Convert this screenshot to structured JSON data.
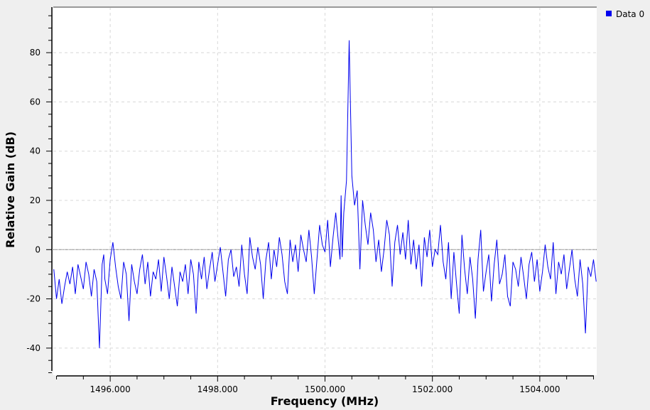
{
  "chart_data": {
    "type": "line",
    "xlabel": "Frequency (MHz)",
    "ylabel": "Relative Gain (dB)",
    "xlim": [
      1494.94,
      1505.06
    ],
    "ylim": [
      -51,
      98.5
    ],
    "x_ticks": [
      {
        "value": 1496,
        "label": "1496.000"
      },
      {
        "value": 1498,
        "label": "1498.000"
      },
      {
        "value": 1500,
        "label": "1500.000"
      },
      {
        "value": 1502,
        "label": "1502.000"
      },
      {
        "value": 1504,
        "label": "1504.000"
      }
    ],
    "y_ticks": [
      {
        "value": -40,
        "label": "-40"
      },
      {
        "value": -20,
        "label": "-20"
      },
      {
        "value": 0,
        "label": "0"
      },
      {
        "value": 20,
        "label": "20"
      },
      {
        "value": 40,
        "label": "40"
      },
      {
        "value": 60,
        "label": "60"
      },
      {
        "value": 80,
        "label": "80"
      }
    ],
    "grid": true,
    "legend_position": "right",
    "reference_line_y": 0,
    "colors": {
      "series": "#0000ee",
      "grid": "#d8d8d8",
      "reference": "#555555",
      "plot_background": "#ffffff",
      "page_background": "#efefef"
    },
    "series": [
      {
        "name": "Data 0",
        "x": [
          1494.95,
          1495.0,
          1495.05,
          1495.1,
          1495.15,
          1495.2,
          1495.25,
          1495.3,
          1495.35,
          1495.4,
          1495.45,
          1495.5,
          1495.55,
          1495.6,
          1495.65,
          1495.7,
          1495.75,
          1495.8,
          1495.85,
          1495.88,
          1495.9,
          1495.95,
          1496.0,
          1496.05,
          1496.1,
          1496.15,
          1496.2,
          1496.25,
          1496.3,
          1496.35,
          1496.4,
          1496.45,
          1496.5,
          1496.55,
          1496.6,
          1496.65,
          1496.7,
          1496.75,
          1496.8,
          1496.85,
          1496.9,
          1496.95,
          1497.0,
          1497.05,
          1497.1,
          1497.15,
          1497.2,
          1497.25,
          1497.3,
          1497.35,
          1497.4,
          1497.45,
          1497.5,
          1497.55,
          1497.6,
          1497.65,
          1497.7,
          1497.75,
          1497.8,
          1497.85,
          1497.9,
          1497.95,
          1498.0,
          1498.05,
          1498.1,
          1498.15,
          1498.2,
          1498.25,
          1498.3,
          1498.35,
          1498.4,
          1498.45,
          1498.5,
          1498.55,
          1498.6,
          1498.65,
          1498.7,
          1498.75,
          1498.8,
          1498.85,
          1498.9,
          1498.95,
          1499.0,
          1499.05,
          1499.1,
          1499.15,
          1499.2,
          1499.25,
          1499.3,
          1499.35,
          1499.4,
          1499.45,
          1499.5,
          1499.55,
          1499.6,
          1499.65,
          1499.7,
          1499.75,
          1499.8,
          1499.85,
          1499.9,
          1499.95,
          1500.0,
          1500.05,
          1500.1,
          1500.15,
          1500.2,
          1500.25,
          1500.28,
          1500.3,
          1500.32,
          1500.35,
          1500.4,
          1500.45,
          1500.5,
          1500.55,
          1500.6,
          1500.65,
          1500.7,
          1500.75,
          1500.8,
          1500.85,
          1500.9,
          1500.95,
          1501.0,
          1501.05,
          1501.1,
          1501.15,
          1501.2,
          1501.25,
          1501.3,
          1501.35,
          1501.4,
          1501.45,
          1501.5,
          1501.55,
          1501.6,
          1501.65,
          1501.7,
          1501.75,
          1501.8,
          1501.85,
          1501.9,
          1501.95,
          1502.0,
          1502.05,
          1502.1,
          1502.15,
          1502.2,
          1502.25,
          1502.3,
          1502.35,
          1502.4,
          1502.45,
          1502.5,
          1502.55,
          1502.6,
          1502.65,
          1502.7,
          1502.75,
          1502.8,
          1502.85,
          1502.9,
          1502.95,
          1503.0,
          1503.05,
          1503.1,
          1503.15,
          1503.2,
          1503.25,
          1503.3,
          1503.35,
          1503.4,
          1503.45,
          1503.5,
          1503.55,
          1503.6,
          1503.65,
          1503.7,
          1503.75,
          1503.8,
          1503.85,
          1503.9,
          1503.95,
          1504.0,
          1504.05,
          1504.1,
          1504.15,
          1504.2,
          1504.25,
          1504.3,
          1504.35,
          1504.4,
          1504.45,
          1504.5,
          1504.55,
          1504.6,
          1504.65,
          1504.7,
          1504.75,
          1504.8,
          1504.85,
          1504.9,
          1504.95,
          1505.0,
          1505.05
        ],
        "values": [
          -8,
          -20,
          -12,
          -22,
          -15,
          -9,
          -14,
          -7,
          -18,
          -6,
          -11,
          -16,
          -5,
          -10,
          -19,
          -8,
          -13,
          -40,
          -6,
          -2,
          -12,
          -18,
          -4,
          3,
          -7,
          -15,
          -20,
          -5,
          -10,
          -29,
          -6,
          -13,
          -18,
          -8,
          -2,
          -14,
          -5,
          -19,
          -9,
          -12,
          -4,
          -17,
          -3,
          -11,
          -20,
          -7,
          -15,
          -23,
          -9,
          -13,
          -6,
          -18,
          -4,
          -10,
          -26,
          -5,
          -12,
          -3,
          -16,
          -8,
          -1,
          -13,
          -6,
          1,
          -9,
          -19,
          -4,
          0,
          -11,
          -7,
          -15,
          2,
          -10,
          -18,
          5,
          -3,
          -8,
          1,
          -6,
          -20,
          -4,
          3,
          -12,
          0,
          -7,
          5,
          -2,
          -13,
          -18,
          4,
          -5,
          2,
          -9,
          6,
          0,
          -5,
          8,
          -3,
          -18,
          -4,
          10,
          2,
          -1,
          12,
          -7,
          5,
          15,
          3,
          -4,
          22,
          -3,
          15,
          28,
          85,
          30,
          18,
          24,
          -8,
          20,
          10,
          2,
          15,
          8,
          -5,
          4,
          -9,
          0,
          12,
          6,
          -15,
          3,
          10,
          -2,
          7,
          -4,
          12,
          -6,
          4,
          -8,
          2,
          -15,
          5,
          -3,
          8,
          -7,
          0,
          -2,
          10,
          -5,
          -12,
          3,
          -20,
          -1,
          -14,
          -26,
          6,
          -8,
          -18,
          -3,
          -12,
          -28,
          -4,
          8,
          -17,
          -9,
          -2,
          -21,
          -6,
          4,
          -14,
          -10,
          -2,
          -19,
          -23,
          -5,
          -8,
          -15,
          -3,
          -11,
          -20,
          -6,
          -1,
          -13,
          -4,
          -17,
          -9,
          2,
          -7,
          -12,
          3,
          -18,
          -5,
          -10,
          -2,
          -16,
          -8,
          0,
          -12,
          -19,
          -4,
          -14,
          -34,
          -7,
          -11,
          -4,
          -13
        ]
      }
    ]
  }
}
